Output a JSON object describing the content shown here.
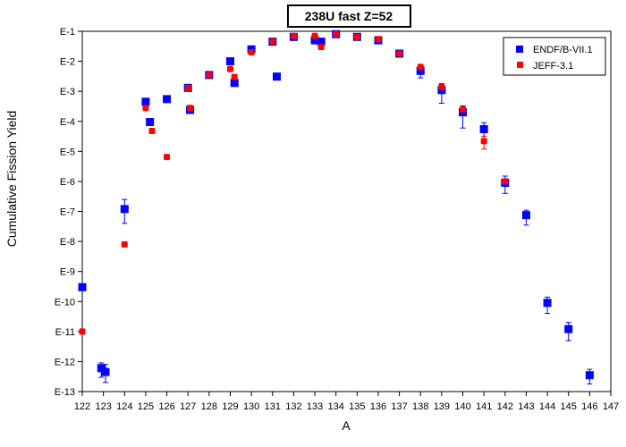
{
  "chart_data": {
    "type": "scatter",
    "title": "238U fast Z=52",
    "xlabel": "A",
    "ylabel": "Cumulative Fission Yield",
    "xlim": [
      122,
      147
    ],
    "ylim_log10": [
      -13,
      -1
    ],
    "x_ticks": [
      122,
      123,
      124,
      125,
      126,
      127,
      128,
      129,
      130,
      131,
      132,
      133,
      134,
      135,
      136,
      137,
      138,
      139,
      140,
      141,
      142,
      143,
      144,
      145,
      146,
      147
    ],
    "y_ticks": [
      {
        "exp": -1,
        "label": "E-1"
      },
      {
        "exp": -2,
        "label": "E-2"
      },
      {
        "exp": -3,
        "label": "E-3"
      },
      {
        "exp": -4,
        "label": "E-4"
      },
      {
        "exp": -5,
        "label": "E-5"
      },
      {
        "exp": -6,
        "label": "E-6"
      },
      {
        "exp": -7,
        "label": "E-7"
      },
      {
        "exp": -8,
        "label": "E-8"
      },
      {
        "exp": -9,
        "label": "E-9"
      },
      {
        "exp": -10,
        "label": "E-10"
      },
      {
        "exp": -11,
        "label": "E-11"
      },
      {
        "exp": -12,
        "label": "E-12"
      },
      {
        "exp": -13,
        "label": "E-13"
      }
    ],
    "y_scale": "log",
    "grid": false,
    "legend_position": "top-right",
    "series": [
      {
        "name": "ENDF/B-VII.1",
        "color": "#0000ff",
        "marker": "square",
        "points": [
          {
            "A": 122,
            "y": 3e-10
          },
          {
            "A": 122.9,
            "y": 6e-13,
            "err_lo": 3e-13,
            "err_hi": 9e-13
          },
          {
            "A": 123.1,
            "y": 4.5e-13,
            "err_lo": 2e-13,
            "err_hi": 8e-13
          },
          {
            "A": 124,
            "y": 1.2e-07,
            "err_lo": 4e-08,
            "err_hi": 2.5e-07
          },
          {
            "A": 125,
            "y": 0.00045
          },
          {
            "A": 125.2,
            "y": 9.5e-05
          },
          {
            "A": 126,
            "y": 0.00055
          },
          {
            "A": 127,
            "y": 0.0013
          },
          {
            "A": 127.1,
            "y": 0.00024
          },
          {
            "A": 128,
            "y": 0.0035
          },
          {
            "A": 129,
            "y": 0.01
          },
          {
            "A": 129.2,
            "y": 0.0019
          },
          {
            "A": 130,
            "y": 0.025
          },
          {
            "A": 131,
            "y": 0.045
          },
          {
            "A": 131.2,
            "y": 0.0031
          },
          {
            "A": 132,
            "y": 0.065
          },
          {
            "A": 133,
            "y": 0.05
          },
          {
            "A": 133.3,
            "y": 0.045
          },
          {
            "A": 134,
            "y": 0.08
          },
          {
            "A": 135,
            "y": 0.065
          },
          {
            "A": 136,
            "y": 0.05
          },
          {
            "A": 137,
            "y": 0.018
          },
          {
            "A": 138,
            "y": 0.0048,
            "err_lo": 0.0028,
            "err_hi": 0.007
          },
          {
            "A": 139,
            "y": 0.0011,
            "err_lo": 0.0004,
            "err_hi": 0.0018
          },
          {
            "A": 140,
            "y": 0.0002,
            "err_lo": 6e-05,
            "err_hi": 0.00033
          },
          {
            "A": 141,
            "y": 5.5e-05,
            "err_lo": 2.5e-05,
            "err_hi": 9e-05
          },
          {
            "A": 142,
            "y": 9e-07,
            "err_lo": 4e-07,
            "err_hi": 1.5e-06
          },
          {
            "A": 143,
            "y": 7.5e-08,
            "err_lo": 3.5e-08,
            "err_hi": 1.1e-07
          },
          {
            "A": 144,
            "y": 9e-11,
            "err_lo": 4e-11,
            "err_hi": 1.4e-10
          },
          {
            "A": 145,
            "y": 1.2e-11,
            "err_lo": 5e-12,
            "err_hi": 2e-11
          },
          {
            "A": 146,
            "y": 3.5e-13,
            "err_lo": 1.8e-13,
            "err_hi": 5.5e-13
          }
        ]
      },
      {
        "name": "JEFF-3.1",
        "color": "#ff0000",
        "marker": "square",
        "points": [
          {
            "A": 122,
            "y": 1e-11
          },
          {
            "A": 124,
            "y": 8e-09
          },
          {
            "A": 125,
            "y": 0.00028
          },
          {
            "A": 125.3,
            "y": 4.8e-05
          },
          {
            "A": 126,
            "y": 6.5e-06
          },
          {
            "A": 127,
            "y": 0.0013
          },
          {
            "A": 127.1,
            "y": 0.00028
          },
          {
            "A": 128,
            "y": 0.0035
          },
          {
            "A": 129,
            "y": 0.0055
          },
          {
            "A": 129.2,
            "y": 0.003
          },
          {
            "A": 130,
            "y": 0.02
          },
          {
            "A": 131,
            "y": 0.045
          },
          {
            "A": 132,
            "y": 0.07
          },
          {
            "A": 133,
            "y": 0.07
          },
          {
            "A": 133.3,
            "y": 0.03
          },
          {
            "A": 134,
            "y": 0.08
          },
          {
            "A": 135,
            "y": 0.065
          },
          {
            "A": 136,
            "y": 0.055
          },
          {
            "A": 137,
            "y": 0.018
          },
          {
            "A": 138,
            "y": 0.0065
          },
          {
            "A": 139,
            "y": 0.0014
          },
          {
            "A": 140,
            "y": 0.00025
          },
          {
            "A": 141,
            "y": 2.2e-05,
            "err_lo": 1.2e-05,
            "err_hi": 3.2e-05
          },
          {
            "A": 142,
            "y": 1e-06
          }
        ]
      }
    ]
  }
}
